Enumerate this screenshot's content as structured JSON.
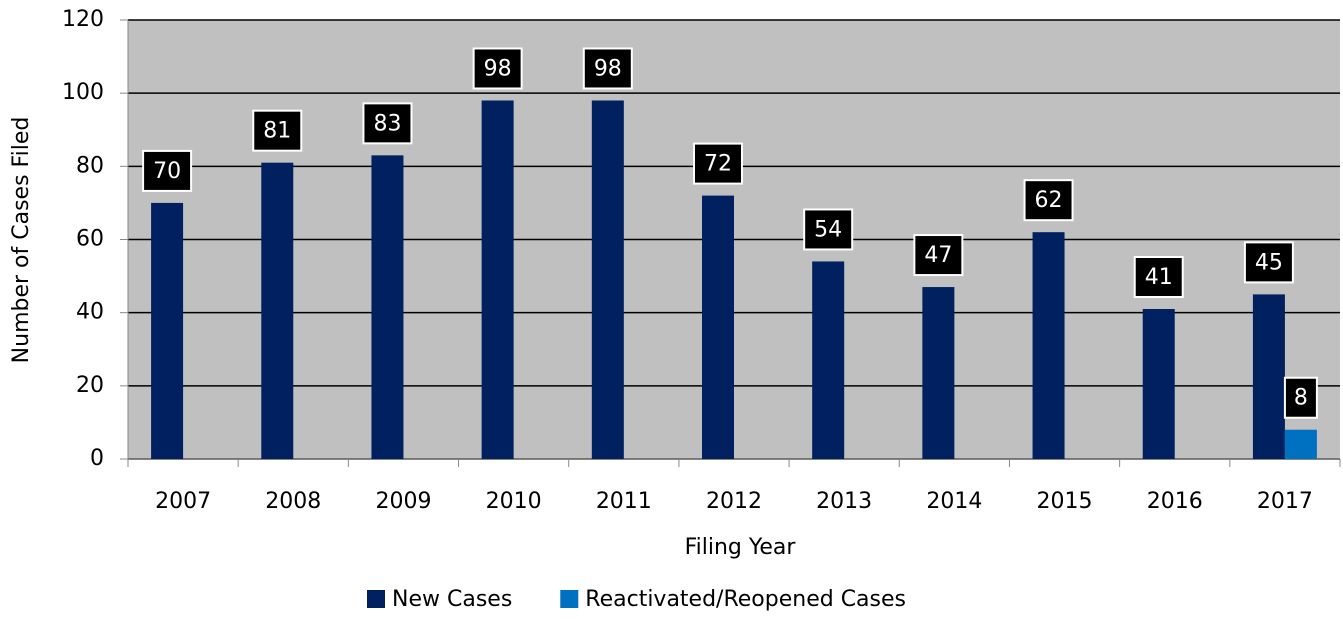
{
  "chart_data": {
    "type": "bar",
    "x_label": "Filing Year",
    "y_label": "Number of Cases Filed",
    "categories": [
      "2007",
      "2008",
      "2009",
      "2010",
      "2011",
      "2012",
      "2013",
      "2014",
      "2015",
      "2016",
      "2017"
    ],
    "series": [
      {
        "name": "New Cases",
        "color": "#002060",
        "values": [
          70,
          81,
          83,
          98,
          98,
          72,
          54,
          47,
          62,
          41,
          45
        ]
      },
      {
        "name": "Reactivated/Reopened Cases",
        "color": "#0070c0",
        "values": [
          null,
          null,
          null,
          null,
          null,
          null,
          null,
          null,
          null,
          null,
          8
        ]
      }
    ],
    "ylim": [
      0,
      120
    ],
    "yticks": [
      0,
      20,
      40,
      60,
      80,
      100,
      120
    ],
    "grid": true,
    "legend": "bottom"
  }
}
